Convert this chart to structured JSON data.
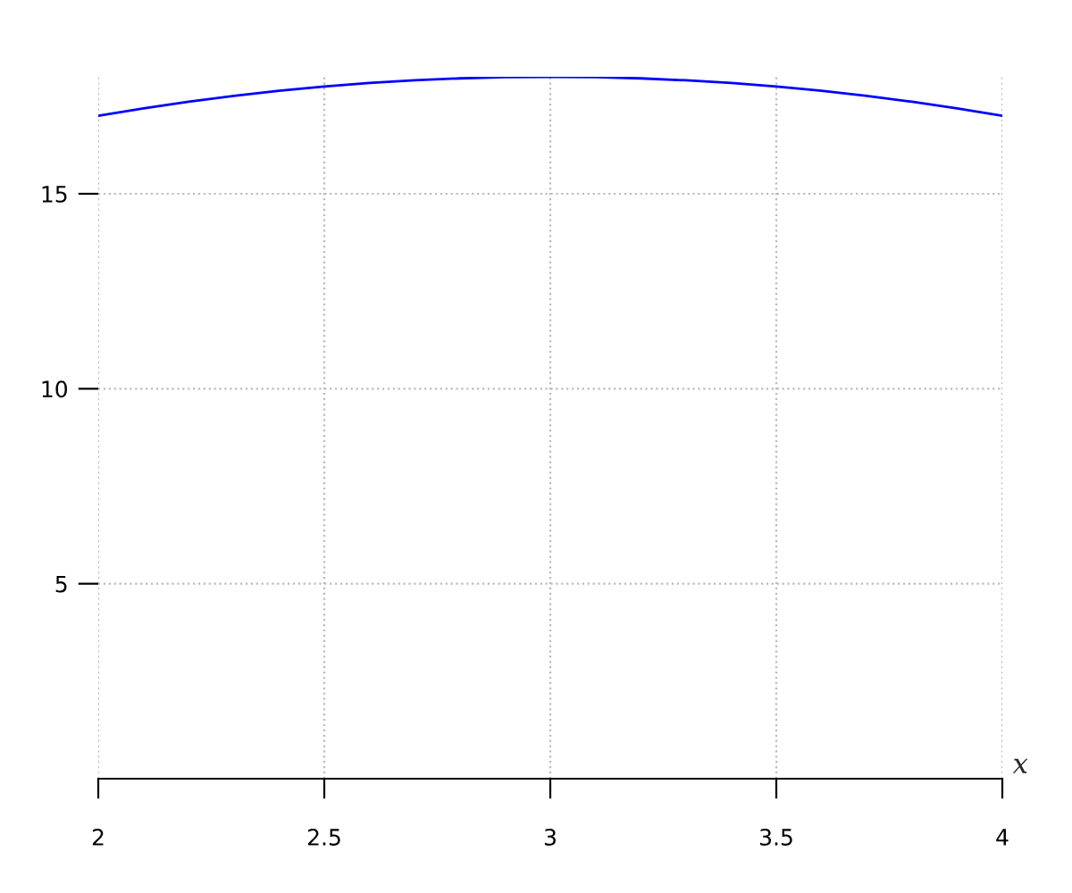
{
  "chart_data": {
    "type": "line",
    "xlabel": "x",
    "x": [
      2.0,
      2.1,
      2.2,
      2.3,
      2.4,
      2.5,
      2.6,
      2.7,
      2.8,
      2.9,
      3.0,
      3.1,
      3.2,
      3.3,
      3.4,
      3.5,
      3.6,
      3.7,
      3.8,
      3.9,
      4.0
    ],
    "series": [
      {
        "color": "#0000ff",
        "values": [
          17.0,
          17.19,
          17.36,
          17.51,
          17.64,
          17.75,
          17.84,
          17.91,
          17.96,
          17.99,
          18.0,
          17.99,
          17.96,
          17.91,
          17.84,
          17.75,
          17.64,
          17.51,
          17.36,
          17.19,
          17.0
        ]
      }
    ],
    "xlim": [
      2,
      4
    ],
    "ylim": [
      0,
      18
    ],
    "xticks": [
      2,
      2.5,
      3,
      3.5,
      4
    ],
    "yticks": [
      5,
      10,
      15
    ],
    "grid": true,
    "marker": "none",
    "line_style": "solid"
  }
}
